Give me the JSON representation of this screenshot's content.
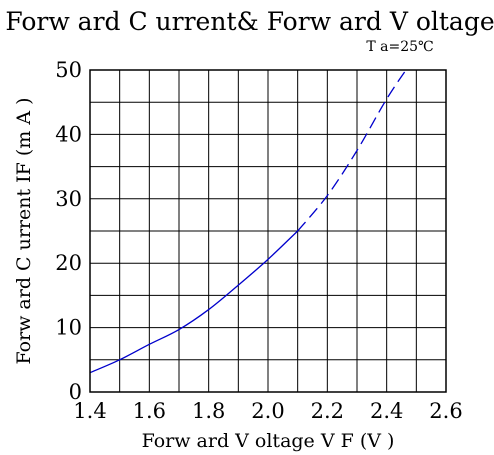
{
  "chart_data": {
    "type": "line",
    "title": "Forw ard C urrent& Forw ard V oltage",
    "annotation": "T a=25℃",
    "xlabel": "Forw ard V oltage V F (V )",
    "ylabel": "Forw ard C urrent IF (m A )",
    "xlim": [
      1.4,
      2.6
    ],
    "ylim": [
      0,
      50
    ],
    "x_ticks": [
      "1.4",
      "1.6",
      "1.8",
      "2.0",
      "2.2",
      "2.4",
      "2.6"
    ],
    "y_ticks": [
      "0",
      "10",
      "20",
      "30",
      "40",
      "50"
    ],
    "grid": true,
    "series": [
      {
        "style": "solid",
        "color": "#0000cc",
        "x": [
          1.4,
          1.5,
          1.6,
          1.7,
          1.8,
          1.9,
          2.0,
          2.1
        ],
        "y": [
          3,
          5,
          7.4,
          9.7,
          12.8,
          16.6,
          20.6,
          25
        ]
      },
      {
        "style": "dashed",
        "color": "#0000cc",
        "x": [
          2.1,
          2.2,
          2.3,
          2.4,
          2.48
        ],
        "y": [
          25,
          30.5,
          37.5,
          45.5,
          51
        ]
      }
    ]
  }
}
